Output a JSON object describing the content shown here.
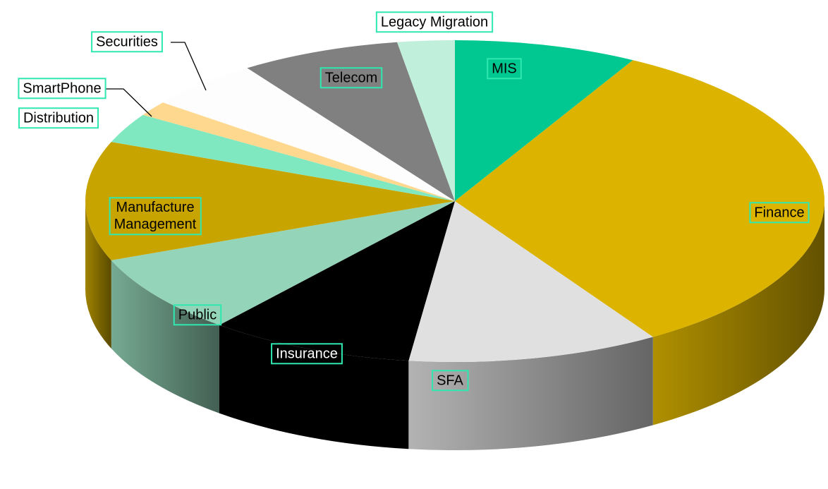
{
  "chart_data": {
    "type": "pie3d",
    "categories": [
      "MIS",
      "Finance",
      "SFA",
      "Insurance",
      "Public",
      "Manufacture Management",
      "Distribution",
      "SmartPhone",
      "Securities",
      "Telecom",
      "Legacy Migration"
    ],
    "values": [
      8,
      33,
      11,
      9,
      8,
      12,
      3,
      1.5,
      5,
      7,
      2.5
    ],
    "colors": [
      "#00c890",
      "#dcb400",
      "#e0e0e0",
      "#000000",
      "#94d4b8",
      "#c8a400",
      "#80e8c0",
      "#ffd890",
      "#fdfdfd",
      "#808080",
      "#c0f0dc"
    ]
  }
}
